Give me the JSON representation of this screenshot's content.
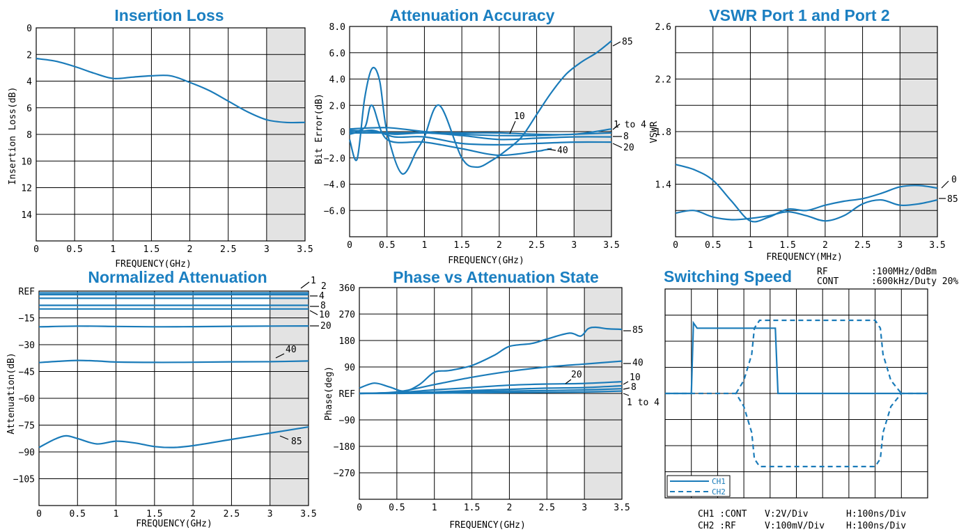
{
  "charts": [
    {
      "id": "insertion_loss",
      "title": "Insertion Loss",
      "xlabel": "FREQUENCY(GHz)",
      "ylabel": "Insertion Loss(dB)",
      "xticks": [
        "0",
        "0.5",
        "1",
        "1.5",
        "2",
        "2.5",
        "3",
        "3.5"
      ],
      "yticks": [
        "0",
        "2",
        "4",
        "6",
        "8",
        "10",
        "12",
        "14"
      ]
    },
    {
      "id": "attenuation_accuracy",
      "title": "Attenuation Accuracy",
      "xlabel": "FREQUENCY(GHz)",
      "ylabel": "Bit Error(dB)",
      "xticks": [
        "0",
        "0.5",
        "1",
        "1.5",
        "2",
        "2.5",
        "3",
        "3.5"
      ],
      "yticks": [
        "8.0",
        "6.0",
        "4.0",
        "2.0",
        "0",
        "−2.0",
        "−4.0",
        "−6.0"
      ],
      "labels": [
        "85",
        "10",
        "1 to 4",
        "8",
        "20",
        "40"
      ]
    },
    {
      "id": "vswr",
      "title": "VSWR Port 1 and Port 2",
      "xlabel": "FREQUENCY(MHz)",
      "ylabel": "VSWR",
      "xticks": [
        "0",
        "0.5",
        "1",
        "1.5",
        "2",
        "2.5",
        "3",
        "3.5"
      ],
      "yticks": [
        "2.6",
        "2.2",
        "1.8",
        "1.4"
      ],
      "labels": [
        "0",
        "85"
      ]
    },
    {
      "id": "normalized_attenuation",
      "title": "Normalized Attenuation",
      "xlabel": "FREQUENCY(GHz)",
      "ylabel": "Attenuation(dB)",
      "xticks": [
        "0",
        "0.5",
        "1",
        "1.5",
        "2",
        "2.5",
        "3",
        "3.5"
      ],
      "yticks": [
        "REF",
        "−15",
        "−30",
        "−45",
        "−60",
        "−75",
        "−90",
        "−105"
      ],
      "labels": [
        "1",
        "2",
        "4",
        "8",
        "10",
        "20",
        "40",
        "85"
      ]
    },
    {
      "id": "phase_vs_attenuation",
      "title": "Phase vs Attenuation State",
      "xlabel": "FREQUENCY(GHz)",
      "ylabel": "Phase(deg)",
      "xticks": [
        "0",
        "0.5",
        "1",
        "1.5",
        "2",
        "2.5",
        "3",
        "3.5"
      ],
      "yticks": [
        "360",
        "270",
        "180",
        "90",
        "REF",
        "−90",
        "−180",
        "−270"
      ],
      "labels": [
        "85",
        "40",
        "20",
        "10",
        "8",
        "1 to 4"
      ]
    }
  ],
  "switching": {
    "title": "Switching Speed",
    "rf_label": "RF",
    "rf_value": ":100MHz/0dBm",
    "cont_label": "CONT",
    "cont_value": ":600kHz/Duty 20%",
    "legend": [
      "CH1",
      "CH2"
    ],
    "ch1_text": "CH1 :CONT",
    "ch1_v": "V:2V/Div",
    "ch1_h": "H:100ns/Div",
    "ch2_text": "CH2 :RF",
    "ch2_v": "V:100mV/Div",
    "ch2_h": "H:100ns/Div"
  },
  "colors": {
    "series": "#1a7bb9",
    "title": "#1b7fc1",
    "shade": "#e3e3e3"
  },
  "chart_data": [
    {
      "type": "line",
      "title": "Insertion Loss",
      "xlabel": "FREQUENCY(GHz)",
      "ylabel": "Insertion Loss(dB)",
      "xlim": [
        0,
        3.5
      ],
      "ylim": [
        16,
        0
      ],
      "shaded_x": [
        3.0,
        3.5
      ],
      "series": [
        {
          "x": [
            0,
            0.25,
            0.5,
            0.75,
            1.0,
            1.25,
            1.5,
            1.75,
            2.0,
            2.25,
            2.5,
            2.75,
            3.0,
            3.25,
            3.5
          ],
          "y": [
            2.3,
            2.5,
            2.9,
            3.4,
            3.8,
            3.7,
            3.6,
            3.6,
            4.1,
            4.7,
            5.5,
            6.3,
            6.9,
            7.1,
            7.1
          ]
        }
      ]
    },
    {
      "type": "line",
      "title": "Attenuation Accuracy",
      "xlabel": "FREQUENCY(GHz)",
      "ylabel": "Bit Error(dB)",
      "xlim": [
        0,
        3.5
      ],
      "ylim": [
        -8,
        8
      ],
      "shaded_x": [
        3.0,
        3.5
      ],
      "series": [
        {
          "name": "85",
          "x": [
            0,
            0.1,
            0.2,
            0.3,
            0.4,
            0.5,
            0.7,
            0.9,
            1.0,
            1.2,
            1.5,
            1.7,
            1.9,
            2.1,
            2.3,
            2.5,
            2.7,
            2.9,
            3.1,
            3.3,
            3.5
          ],
          "y": [
            -0.6,
            -2.1,
            2.5,
            4.8,
            3.9,
            0.0,
            -3.2,
            -1.4,
            -0.4,
            2.0,
            -2.0,
            -2.7,
            -2.2,
            -1.4,
            -0.4,
            1.3,
            3.0,
            4.4,
            5.3,
            6.0,
            6.9
          ]
        },
        {
          "name": "40",
          "x": [
            0,
            0.2,
            0.3,
            0.5,
            1.0,
            1.5,
            2.0,
            2.5,
            2.6,
            2.7
          ],
          "y": [
            0.0,
            0.3,
            2.0,
            -0.6,
            -0.8,
            -1.3,
            -1.8,
            -1.5,
            -1.4,
            -1.3
          ]
        },
        {
          "name": "20",
          "x": [
            0,
            0.3,
            0.6,
            1.0,
            1.5,
            2.0,
            2.5,
            3.0,
            3.5
          ],
          "y": [
            -0.2,
            0.1,
            -0.4,
            -0.4,
            -0.9,
            -1.0,
            -0.9,
            -0.8,
            -0.8
          ]
        },
        {
          "name": "10",
          "x": [
            0,
            0.3,
            0.6,
            1.0,
            1.5,
            2.0,
            2.5,
            3.0,
            3.5
          ],
          "y": [
            0.1,
            0.0,
            -0.2,
            -0.1,
            -0.3,
            -0.6,
            -0.5,
            -0.4,
            -0.4
          ]
        },
        {
          "name": "8",
          "x": [
            0,
            0.5,
            1.0,
            1.5,
            2.0,
            2.5,
            3.0,
            3.5
          ],
          "y": [
            0.2,
            0.3,
            0.0,
            -0.2,
            -0.3,
            -0.3,
            -0.2,
            -0.1
          ]
        },
        {
          "name": "1 to 4",
          "x": [
            0,
            0.5,
            1.0,
            1.5,
            2.0,
            2.5,
            3.0,
            3.5
          ],
          "y": [
            -0.1,
            -0.1,
            -0.1,
            -0.1,
            -0.1,
            -0.2,
            -0.2,
            0.2
          ]
        }
      ]
    },
    {
      "type": "line",
      "title": "VSWR Port 1 and Port 2",
      "xlabel": "FREQUENCY(MHz)",
      "ylabel": "VSWR",
      "xlim": [
        0,
        3.5
      ],
      "ylim": [
        1.0,
        2.6
      ],
      "shaded_x": [
        3.0,
        3.5
      ],
      "series": [
        {
          "name": "0",
          "x": [
            0,
            0.25,
            0.5,
            0.75,
            1.0,
            1.25,
            1.5,
            1.75,
            2.0,
            2.25,
            2.5,
            2.75,
            3.0,
            3.25,
            3.5
          ],
          "y": [
            1.55,
            1.51,
            1.43,
            1.27,
            1.12,
            1.15,
            1.21,
            1.2,
            1.24,
            1.27,
            1.29,
            1.33,
            1.38,
            1.39,
            1.37
          ]
        },
        {
          "name": "85",
          "x": [
            0,
            0.25,
            0.5,
            0.75,
            1.0,
            1.25,
            1.5,
            1.75,
            2.0,
            2.25,
            2.5,
            2.75,
            3.0,
            3.25,
            3.5
          ],
          "y": [
            1.18,
            1.2,
            1.15,
            1.13,
            1.14,
            1.16,
            1.19,
            1.16,
            1.12,
            1.16,
            1.25,
            1.28,
            1.24,
            1.25,
            1.28
          ]
        }
      ]
    },
    {
      "type": "line",
      "title": "Normalized Attenuation",
      "xlabel": "FREQUENCY(GHz)",
      "ylabel": "Attenuation(dB)",
      "xlim": [
        0,
        3.5
      ],
      "ylim": [
        -120,
        0
      ],
      "shaded_x": [
        3.0,
        3.5
      ],
      "series": [
        {
          "name": "1",
          "x": [
            0,
            1,
            2,
            3,
            3.5
          ],
          "y": [
            -1,
            -1,
            -1,
            -1,
            -1
          ]
        },
        {
          "name": "2",
          "x": [
            0,
            1,
            2,
            3,
            3.5
          ],
          "y": [
            -2,
            -2,
            -2,
            -2,
            -2
          ]
        },
        {
          "name": "4",
          "x": [
            0,
            1,
            2,
            3,
            3.5
          ],
          "y": [
            -4,
            -4,
            -4,
            -4,
            -4
          ]
        },
        {
          "name": "8",
          "x": [
            0,
            1,
            2,
            3,
            3.5
          ],
          "y": [
            -8,
            -8,
            -8,
            -8,
            -8
          ]
        },
        {
          "name": "10",
          "x": [
            0,
            1,
            2,
            3,
            3.5
          ],
          "y": [
            -10,
            -10,
            -10,
            -10,
            -10
          ]
        },
        {
          "name": "20",
          "x": [
            0,
            0.5,
            1.0,
            1.5,
            2.0,
            2.5,
            3.0,
            3.5
          ],
          "y": [
            -20,
            -19.6,
            -19.8,
            -20.0,
            -19.9,
            -19.7,
            -19.6,
            -19.5
          ]
        },
        {
          "name": "40",
          "x": [
            0,
            0.25,
            0.5,
            0.75,
            1.0,
            1.5,
            2.0,
            2.5,
            3.0,
            3.5
          ],
          "y": [
            -40.0,
            -39.3,
            -38.8,
            -39.1,
            -39.7,
            -39.9,
            -39.8,
            -39.6,
            -39.5,
            -39.1
          ]
        },
        {
          "name": "85",
          "x": [
            0,
            0.2,
            0.35,
            0.5,
            0.75,
            1.0,
            1.25,
            1.5,
            1.75,
            2.0,
            2.5,
            3.0,
            3.5
          ],
          "y": [
            -87.5,
            -83.0,
            -81.0,
            -82.5,
            -85.5,
            -84.0,
            -85.0,
            -87.0,
            -87.5,
            -86.5,
            -83.0,
            -79.5,
            -76.0
          ]
        }
      ]
    },
    {
      "type": "line",
      "title": "Phase vs Attenuation State",
      "xlabel": "FREQUENCY(GHz)",
      "ylabel": "Phase(deg)",
      "xlim": [
        0,
        3.5
      ],
      "ylim": [
        -360,
        360
      ],
      "shaded_x": [
        3.0,
        3.5
      ],
      "series": [
        {
          "name": "85",
          "x": [
            0,
            0.2,
            0.4,
            0.6,
            0.8,
            1.0,
            1.2,
            1.5,
            1.8,
            2.0,
            2.3,
            2.5,
            2.8,
            2.95,
            3.05,
            3.15,
            3.3,
            3.5
          ],
          "y": [
            18,
            35,
            22,
            8,
            30,
            72,
            78,
            95,
            130,
            160,
            170,
            185,
            205,
            195,
            220,
            225,
            220,
            218
          ]
        },
        {
          "name": "40",
          "x": [
            0,
            0.5,
            1.0,
            1.5,
            2.0,
            2.5,
            3.0,
            3.5
          ],
          "y": [
            0,
            5,
            30,
            55,
            75,
            90,
            100,
            110
          ]
        },
        {
          "name": "20",
          "x": [
            0,
            0.5,
            1.0,
            1.5,
            2.0,
            2.5,
            3.0,
            3.5
          ],
          "y": [
            0,
            3,
            12,
            20,
            28,
            32,
            34,
            40
          ]
        },
        {
          "name": "10",
          "x": [
            0,
            0.5,
            1.0,
            1.5,
            2.0,
            2.5,
            3.0,
            3.5
          ],
          "y": [
            0,
            2,
            5,
            10,
            14,
            18,
            20,
            26
          ]
        },
        {
          "name": "8",
          "x": [
            0,
            0.5,
            1.0,
            1.5,
            2.0,
            2.5,
            3.0,
            3.5
          ],
          "y": [
            0,
            1,
            3,
            6,
            8,
            10,
            12,
            16
          ]
        },
        {
          "name": "1 to 4",
          "x": [
            0,
            0.5,
            1.0,
            1.5,
            2.0,
            2.5,
            3.0,
            3.5
          ],
          "y": [
            0,
            0,
            1,
            2,
            3,
            4,
            5,
            8
          ]
        }
      ]
    },
    {
      "type": "line",
      "title": "Switching Speed",
      "xlim": [
        0,
        10
      ],
      "ylim": [
        -4,
        4
      ],
      "series": [
        {
          "name": "CH1",
          "x": [
            0,
            1.0,
            1.08,
            1.22,
            1.5,
            4.0,
            4.2,
            4.3,
            10
          ],
          "y": [
            0,
            0,
            2.7,
            2.5,
            2.5,
            2.5,
            2.5,
            0,
            0
          ]
        },
        {
          "name": "CH2",
          "x": [
            0,
            2.7,
            3.0,
            3.3,
            3.4,
            3.6,
            8.0,
            8.2,
            8.3,
            8.6,
            9.0,
            10
          ],
          "y": [
            0,
            0,
            -0.5,
            -1.5,
            -2.5,
            -2.8,
            -2.8,
            -2.5,
            -1.5,
            -0.5,
            0,
            0
          ]
        },
        {
          "name": "CH2",
          "x": [
            2.7,
            3.0,
            3.3,
            3.4,
            3.6,
            8.0,
            8.2,
            8.3,
            8.6,
            9.0
          ],
          "y": [
            0,
            0.5,
            1.5,
            2.5,
            2.8,
            2.8,
            2.5,
            1.5,
            0.5,
            0
          ]
        }
      ]
    }
  ]
}
